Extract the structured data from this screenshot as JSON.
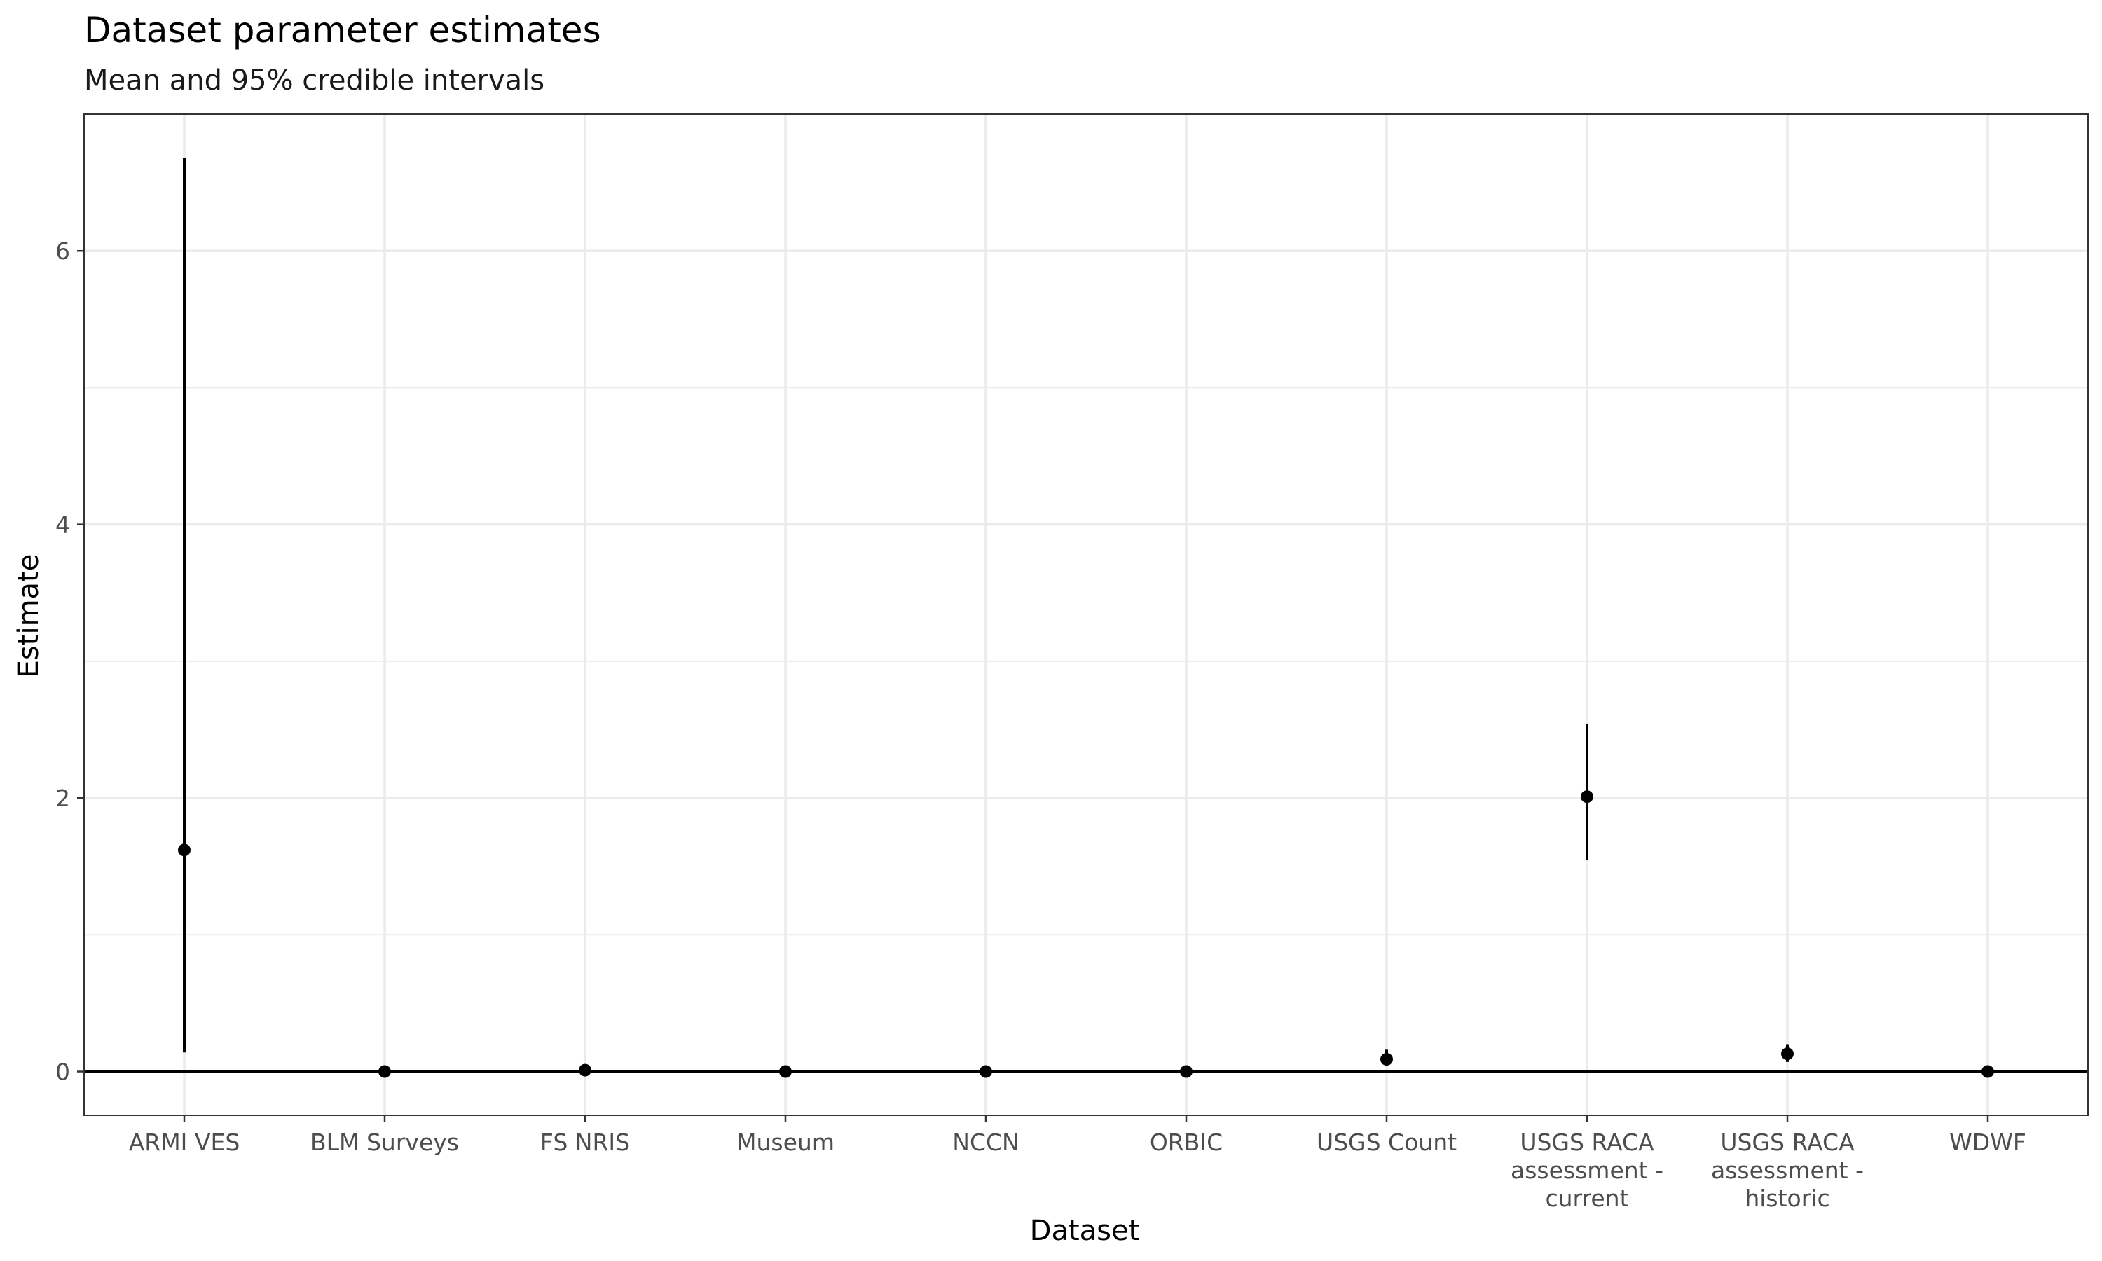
{
  "chart_data": {
    "type": "scatter",
    "title": "Dataset parameter estimates",
    "subtitle": "Mean and 95% credible intervals",
    "xlabel": "Dataset",
    "ylabel": "Estimate",
    "ylim": [
      -0.32,
      7.0
    ],
    "yticks": [
      0,
      2,
      4,
      6
    ],
    "grid": true,
    "reference_line_y": 0,
    "categories": [
      [
        "ARMI VES"
      ],
      [
        "BLM Surveys"
      ],
      [
        "FS NRIS"
      ],
      [
        "Museum"
      ],
      [
        "NCCN"
      ],
      [
        "ORBIC"
      ],
      [
        "USGS Count"
      ],
      [
        "USGS RACA",
        "assessment -",
        "current"
      ],
      [
        "USGS RACA",
        "assessment -",
        "historic"
      ],
      [
        "WDWF"
      ]
    ],
    "points": [
      {
        "mean": 1.62,
        "lower": 0.14,
        "upper": 6.68
      },
      {
        "mean": 0.0,
        "lower": 0.0,
        "upper": 0.0
      },
      {
        "mean": 0.01,
        "lower": 0.0,
        "upper": 0.02
      },
      {
        "mean": 0.0,
        "lower": 0.0,
        "upper": 0.0
      },
      {
        "mean": 0.0,
        "lower": 0.0,
        "upper": 0.0
      },
      {
        "mean": 0.0,
        "lower": 0.0,
        "upper": 0.0
      },
      {
        "mean": 0.09,
        "lower": 0.04,
        "upper": 0.16
      },
      {
        "mean": 2.01,
        "lower": 1.55,
        "upper": 2.54
      },
      {
        "mean": 0.13,
        "lower": 0.07,
        "upper": 0.2
      },
      {
        "mean": 0.0,
        "lower": 0.0,
        "upper": 0.0
      }
    ],
    "colors": {
      "point": "#000000",
      "interval": "#000000",
      "grid": "#ebebeb",
      "panel_border": "#333333",
      "reference_line": "#000000"
    }
  }
}
